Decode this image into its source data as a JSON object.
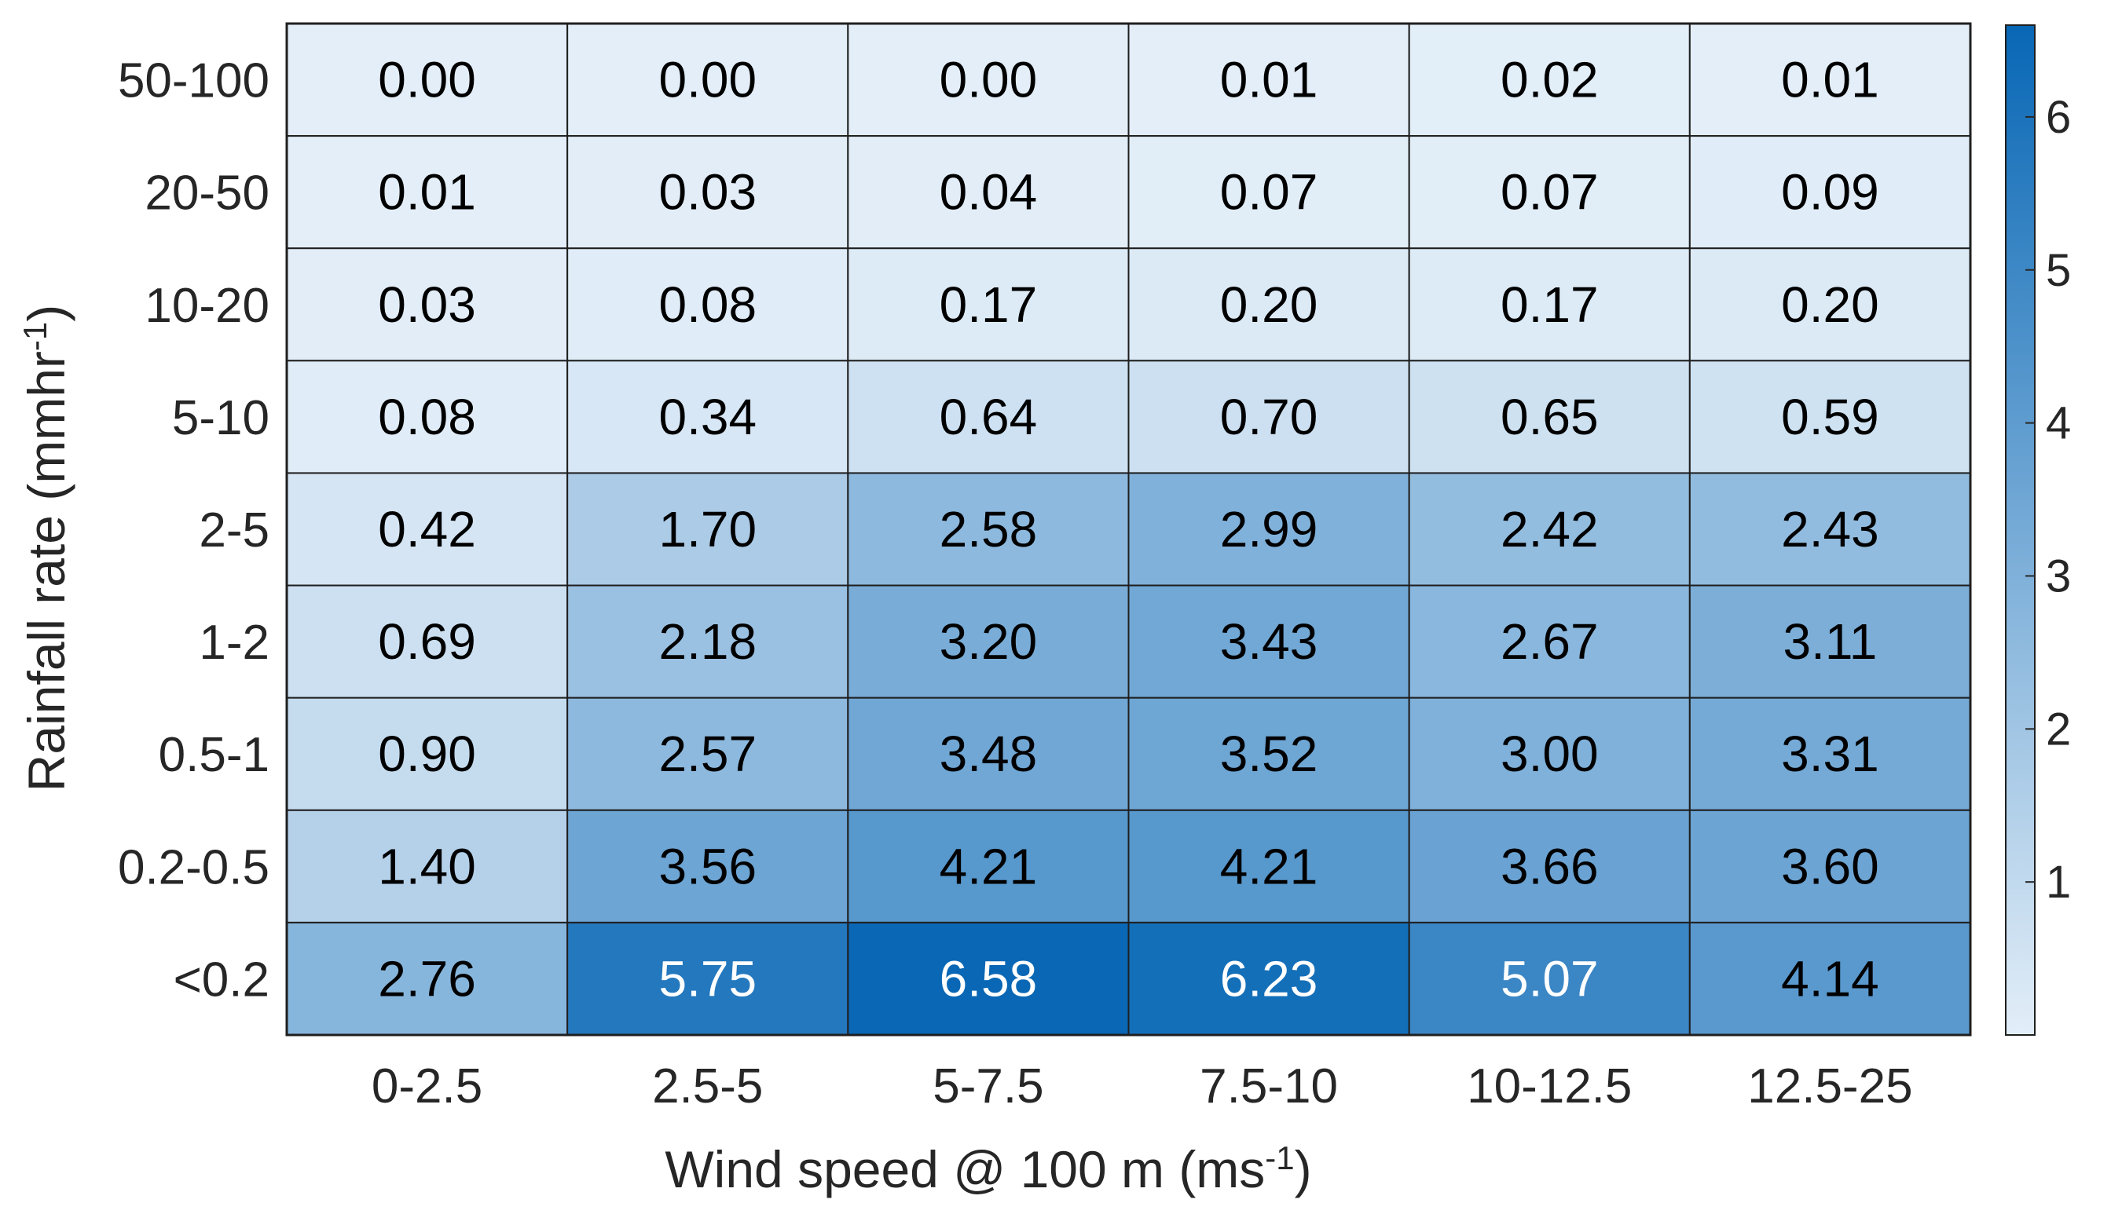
{
  "chart_data": {
    "type": "heatmap",
    "xlabel": "Wind speed @ 100 m (ms",
    "xlabel_sup": "-1",
    "xlabel_tail": ")",
    "ylabel": "Rainfall rate (mmhr",
    "ylabel_sup": "-1",
    "ylabel_tail": ")",
    "x_categories": [
      "0-2.5",
      "2.5-5",
      "5-7.5",
      "7.5-10",
      "10-12.5",
      "12.5-25"
    ],
    "y_categories_top_to_bottom": [
      "50-100",
      "20-50",
      "10-20",
      "5-10",
      "2-5",
      "1-2",
      "0.5-1",
      "0.2-0.5",
      "<0.2"
    ],
    "values_top_to_bottom": [
      [
        "0.00",
        "0.00",
        "0.00",
        "0.01",
        "0.02",
        "0.01"
      ],
      [
        "0.01",
        "0.03",
        "0.04",
        "0.07",
        "0.07",
        "0.09"
      ],
      [
        "0.03",
        "0.08",
        "0.17",
        "0.20",
        "0.17",
        "0.20"
      ],
      [
        "0.08",
        "0.34",
        "0.64",
        "0.70",
        "0.65",
        "0.59"
      ],
      [
        "0.42",
        "1.70",
        "2.58",
        "2.99",
        "2.42",
        "2.43"
      ],
      [
        "0.69",
        "2.18",
        "3.20",
        "3.43",
        "2.67",
        "3.11"
      ],
      [
        "0.90",
        "2.57",
        "3.48",
        "3.52",
        "3.00",
        "3.31"
      ],
      [
        "1.40",
        "3.56",
        "4.21",
        "4.21",
        "3.66",
        "3.60"
      ],
      [
        "2.76",
        "5.75",
        "6.58",
        "6.23",
        "5.07",
        "4.14"
      ]
    ],
    "colorbar": {
      "range": [
        0,
        6.6
      ],
      "ticks": [
        "1",
        "2",
        "3",
        "4",
        "5",
        "6"
      ],
      "color_low": "#e3eef8",
      "color_high": "#0867b5"
    },
    "label_color_dark": "#000000",
    "label_color_light": "#ffffff",
    "grid": true
  }
}
